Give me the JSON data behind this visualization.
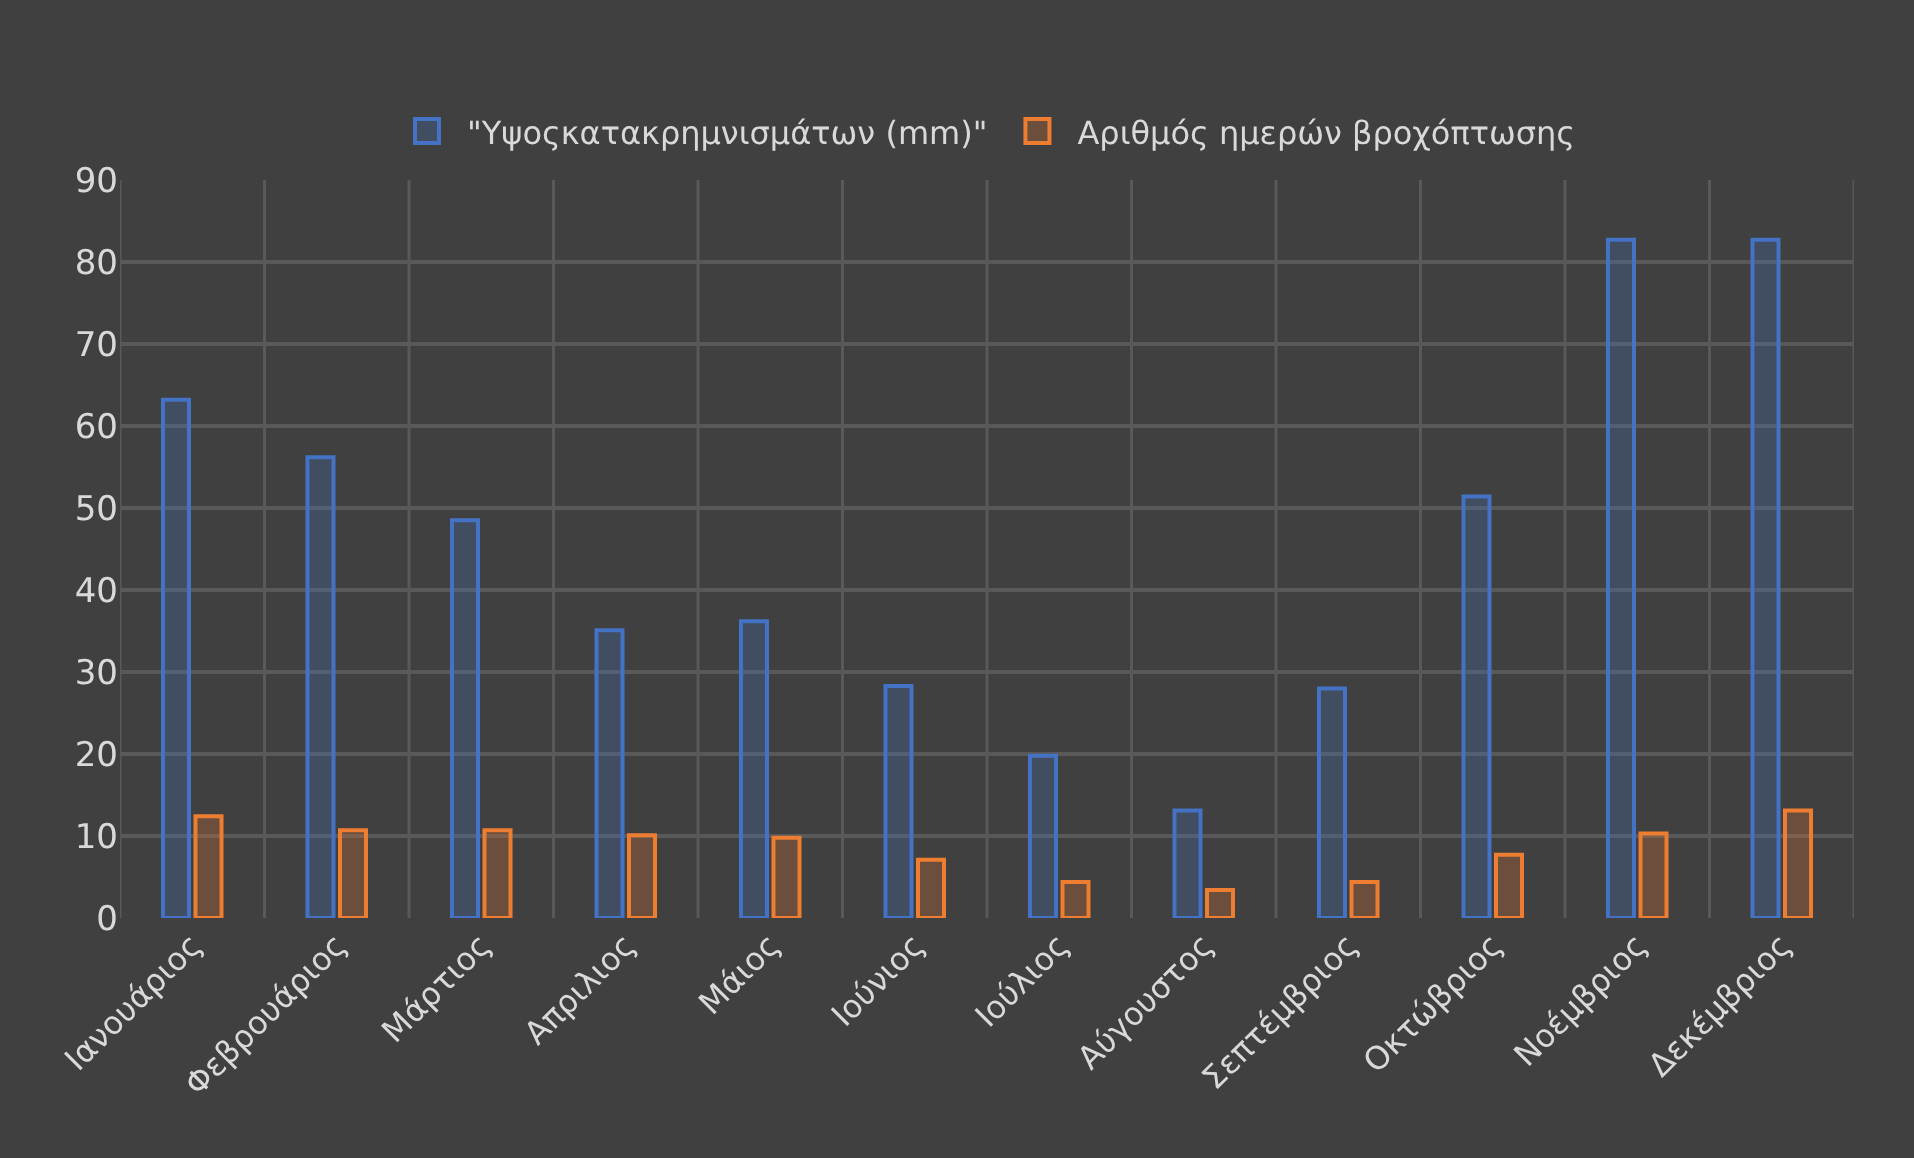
{
  "chart_data": {
    "type": "bar",
    "categories": [
      "Ιανουάριος",
      "Φεβρουάριος",
      "Μάρτιος",
      "Απριλιος",
      "Μάιος",
      "Ιούνιος",
      "Ιούλιος",
      "Αύγουστος",
      "Σεπτέμβριος",
      "Οκτώβριος",
      "Νοέμβριος",
      "Δεκέμβριος"
    ],
    "series": [
      {
        "name": "\"Υψοςκατακρημνισμάτων (mm)\"",
        "color": "#4472c4",
        "values": [
          63.2,
          56.2,
          48.5,
          35.1,
          36.2,
          28.3,
          19.8,
          13.1,
          28.0,
          51.4,
          82.7,
          82.7
        ]
      },
      {
        "name": "Αριθμός ημερών βροχόπτωσης",
        "color": "#ed7d31",
        "values": [
          12.4,
          10.7,
          10.7,
          10.1,
          9.8,
          7.1,
          4.4,
          3.4,
          4.4,
          7.7,
          10.3,
          13.1
        ]
      }
    ],
    "ylim": [
      0,
      90
    ],
    "yticks": [
      0,
      10,
      20,
      30,
      40,
      50,
      60,
      70,
      80,
      90
    ],
    "grid": true,
    "legend": "top"
  }
}
